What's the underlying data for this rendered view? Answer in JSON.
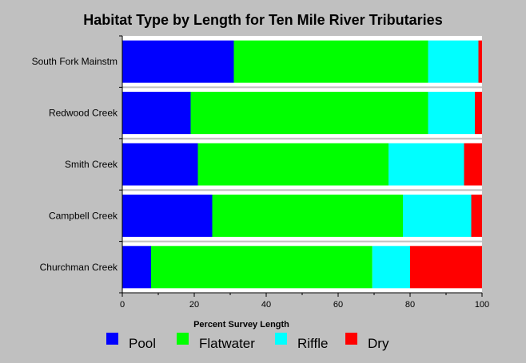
{
  "chart_data": {
    "type": "bar",
    "orientation": "horizontal",
    "stacked": true,
    "title": "Habitat Type by Length for Ten Mile River Tributaries",
    "xlabel": "Percent Survey Length",
    "ylabel": "",
    "xlim": [
      0,
      100
    ],
    "xticks": [
      "0",
      "20",
      "40",
      "60",
      "80",
      "100"
    ],
    "categories": [
      "South Fork Mainstm",
      "Redwood Creek",
      "Smith Creek",
      "Campbell Creek",
      "Churchman Creek"
    ],
    "series": [
      {
        "name": "Pool",
        "color": "#0000ff",
        "values": [
          31,
          19,
          21,
          25,
          8
        ]
      },
      {
        "name": "Flatwater",
        "color": "#00ff00",
        "values": [
          54,
          66,
          53,
          53,
          61.5
        ]
      },
      {
        "name": "Riffle",
        "color": "#00ffff",
        "values": [
          14,
          13,
          21,
          19,
          10.5
        ]
      },
      {
        "name": "Dry",
        "color": "#ff0000",
        "values": [
          1,
          2,
          5,
          3,
          20
        ]
      }
    ],
    "legend_position": "bottom",
    "grid": false
  }
}
